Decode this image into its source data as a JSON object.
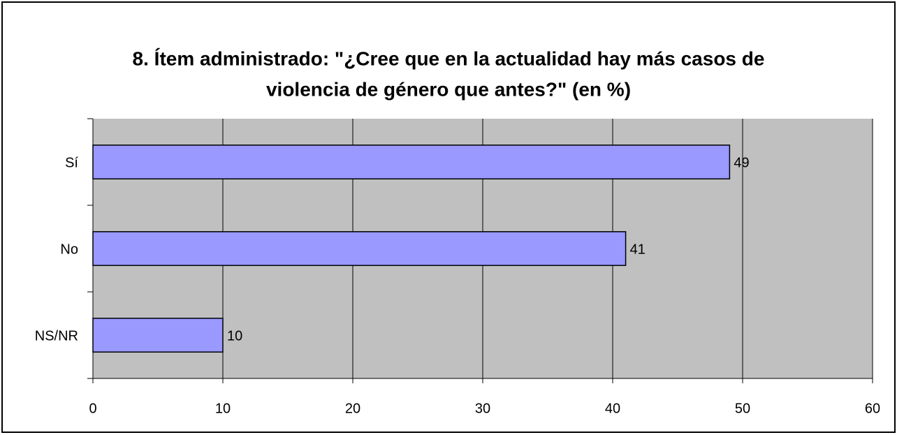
{
  "chart_data": {
    "type": "bar",
    "orientation": "horizontal",
    "title": [
      "8. Ítem administrado: \"¿Cree que en la actualidad hay más casos de",
      "violencia de género que antes?\" (en %)"
    ],
    "categories": [
      "Sí",
      "No",
      "NS/NR"
    ],
    "values": [
      49,
      41,
      10
    ],
    "color": "#9999ff",
    "xlim": [
      0,
      60
    ],
    "xticks": [
      0,
      10,
      20,
      30,
      40,
      50,
      60
    ],
    "grid": true
  }
}
